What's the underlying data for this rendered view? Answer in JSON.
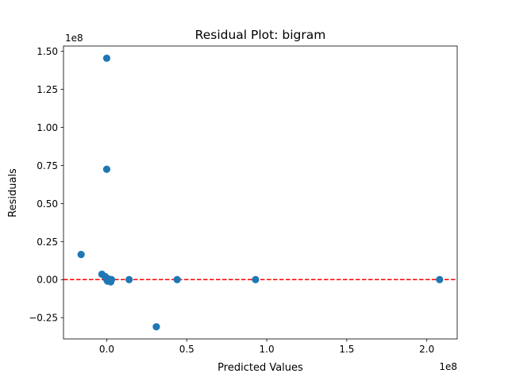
{
  "chart_data": {
    "type": "scatter",
    "title": "Residual Plot: bigram",
    "xlabel": "Predicted Values",
    "ylabel": "Residuals",
    "x_offset_label": "1e8",
    "y_offset_label": "1e8",
    "xlim": [
      -0.27,
      2.19
    ],
    "ylim": [
      -0.39,
      1.535
    ],
    "xticks": [
      0.0,
      0.5,
      1.0,
      1.5,
      2.0
    ],
    "xtick_labels": [
      "0.0",
      "0.5",
      "1.0",
      "1.5",
      "2.0"
    ],
    "yticks": [
      -0.25,
      0.0,
      0.25,
      0.5,
      0.75,
      1.0,
      1.25,
      1.5
    ],
    "ytick_labels": [
      "−0.25",
      "0.00",
      "0.25",
      "0.50",
      "0.75",
      "1.00",
      "1.25",
      "1.50"
    ],
    "grid": false,
    "reference_line": {
      "y": 0,
      "style": "dashed",
      "color": "#ff0000"
    },
    "marker_color": "#1f77b4",
    "points": [
      {
        "x": 0.0,
        "y": 1.455
      },
      {
        "x": 0.0,
        "y": 0.725
      },
      {
        "x": -0.16,
        "y": 0.165
      },
      {
        "x": -0.03,
        "y": 0.035
      },
      {
        "x": -0.01,
        "y": 0.02
      },
      {
        "x": 0.0,
        "y": 0.0
      },
      {
        "x": 0.005,
        "y": -0.01
      },
      {
        "x": 0.01,
        "y": 0.005
      },
      {
        "x": 0.02,
        "y": -0.005
      },
      {
        "x": 0.025,
        "y": -0.015
      },
      {
        "x": 0.03,
        "y": 0.0
      },
      {
        "x": 0.14,
        "y": 0.0
      },
      {
        "x": 0.44,
        "y": 0.0
      },
      {
        "x": 0.93,
        "y": 0.0
      },
      {
        "x": 2.08,
        "y": 0.0
      },
      {
        "x": 0.31,
        "y": -0.31
      }
    ]
  }
}
